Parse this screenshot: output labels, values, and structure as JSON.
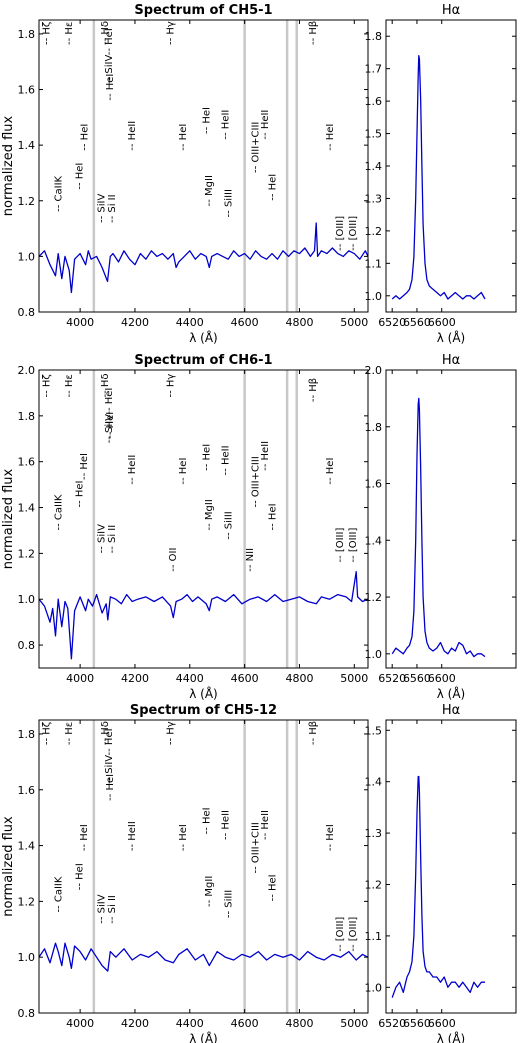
{
  "figure": {
    "ylabel": "normalized flux",
    "xlabel": "λ (Å)"
  },
  "chart_data": [
    {
      "type": "line",
      "title": "Spectrum of CH5-1",
      "xlabel": "λ (Å)",
      "ylabel": "normalized flux",
      "xlim": [
        3850,
        5050
      ],
      "ylim": [
        0.8,
        1.85
      ],
      "xticks": [
        4000,
        4200,
        4400,
        4600,
        4800,
        5000
      ],
      "yticks": [
        0.8,
        1.0,
        1.2,
        1.4,
        1.6,
        1.8
      ],
      "grey_bands": [
        4050,
        4600,
        4755,
        4790
      ],
      "color": "#0000cc",
      "x": [
        3850,
        3870,
        3890,
        3910,
        3920,
        3933,
        3945,
        3960,
        3968,
        3980,
        4000,
        4020,
        4030,
        4040,
        4060,
        4080,
        4100,
        4110,
        4120,
        4140,
        4160,
        4180,
        4200,
        4220,
        4240,
        4260,
        4280,
        4300,
        4320,
        4340,
        4350,
        4360,
        4380,
        4400,
        4420,
        4440,
        4460,
        4471,
        4480,
        4500,
        4520,
        4540,
        4560,
        4580,
        4600,
        4620,
        4640,
        4660,
        4680,
        4700,
        4720,
        4740,
        4760,
        4780,
        4800,
        4820,
        4840,
        4855,
        4861,
        4866,
        4880,
        4900,
        4920,
        4940,
        4960,
        4980,
        5000,
        5020,
        5040,
        5050
      ],
      "y": [
        1.0,
        1.02,
        0.97,
        0.93,
        1.01,
        0.92,
        1.0,
        0.95,
        0.87,
        0.99,
        1.01,
        0.97,
        1.02,
        0.99,
        1.0,
        0.96,
        0.91,
        1.0,
        1.01,
        0.98,
        1.02,
        0.99,
        0.97,
        1.01,
        0.99,
        1.02,
        1.0,
        1.01,
        0.99,
        1.01,
        0.96,
        0.98,
        1.0,
        1.02,
        0.99,
        1.01,
        1.0,
        0.96,
        1.0,
        1.01,
        1.0,
        0.99,
        1.02,
        1.0,
        1.01,
        0.99,
        1.02,
        1.0,
        0.99,
        1.01,
        0.99,
        1.02,
        1.0,
        1.02,
        1.01,
        1.03,
        1.0,
        1.02,
        1.12,
        1.0,
        1.02,
        1.01,
        1.03,
        1.01,
        1.0,
        1.02,
        1.01,
        0.99,
        1.02,
        1.0
      ],
      "line_labels": [
        {
          "text": "-- Hζ",
          "x": 3889,
          "y": 1.76
        },
        {
          "text": "-- Hε",
          "x": 3970,
          "y": 1.76
        },
        {
          "text": "-- Hδ",
          "x": 4101,
          "y": 1.76
        },
        {
          "text": "-- Hγ",
          "x": 4340,
          "y": 1.76
        },
        {
          "text": "-- Hβ",
          "x": 4861,
          "y": 1.76
        },
        {
          "text": "-- HeI",
          "x": 4120,
          "y": 1.56
        },
        {
          "text": "-- HeI",
          "x": 4026,
          "y": 1.38
        },
        {
          "text": "-- HeI",
          "x": 4009,
          "y": 1.24
        },
        {
          "text": "-- CaIIK",
          "x": 3933,
          "y": 1.16
        },
        {
          "text": "-- SiIV",
          "x": 4089,
          "y": 1.12
        },
        {
          "text": "-- Si II",
          "x": 4128,
          "y": 1.12
        },
        {
          "text": "-- SiIV-- HeI",
          "x": 4116,
          "y": 1.62
        },
        {
          "text": "-- HeII",
          "x": 4200,
          "y": 1.38
        },
        {
          "text": "-- HeI",
          "x": 4387,
          "y": 1.38
        },
        {
          "text": "-- HeI",
          "x": 4471,
          "y": 1.44
        },
        {
          "text": "-- HeII",
          "x": 4542,
          "y": 1.42
        },
        {
          "text": "-- MgII",
          "x": 4481,
          "y": 1.18
        },
        {
          "text": "-- SiIII",
          "x": 4553,
          "y": 1.14
        },
        {
          "text": "-- OIII+CIII",
          "x": 4650,
          "y": 1.3
        },
        {
          "text": "-- HeII",
          "x": 4686,
          "y": 1.42
        },
        {
          "text": "-- HeI",
          "x": 4713,
          "y": 1.2
        },
        {
          "text": "-- HeI",
          "x": 4922,
          "y": 1.38
        },
        {
          "text": "-- [OIII]",
          "x": 4959,
          "y": 1.02
        },
        {
          "text": "-- [OIII]",
          "x": 5007,
          "y": 1.02
        }
      ]
    },
    {
      "type": "line",
      "title": "Hα",
      "xlabel": "λ (Å)",
      "xlim": [
        6510,
        6720
      ],
      "ylim": [
        0.95,
        1.85
      ],
      "xticks": [
        6520,
        6560,
        6600
      ],
      "yticks": [
        1.0,
        1.1,
        1.2,
        1.3,
        1.4,
        1.5,
        1.6,
        1.7,
        1.8
      ],
      "color": "#0000cc",
      "x": [
        6520,
        6526,
        6532,
        6538,
        6544,
        6548,
        6552,
        6555,
        6558,
        6560,
        6562,
        6563,
        6564,
        6566,
        6568,
        6570,
        6573,
        6576,
        6580,
        6586,
        6592,
        6598,
        6604,
        6610,
        6616,
        6622,
        6628,
        6634,
        6640,
        6646,
        6652,
        6658,
        6664,
        6670
      ],
      "y": [
        0.99,
        1.0,
        0.99,
        1.0,
        1.01,
        1.02,
        1.05,
        1.12,
        1.3,
        1.5,
        1.68,
        1.74,
        1.73,
        1.6,
        1.4,
        1.22,
        1.1,
        1.05,
        1.03,
        1.02,
        1.01,
        1.0,
        1.01,
        0.99,
        1.0,
        1.01,
        1.0,
        0.99,
        1.0,
        1.0,
        0.99,
        1.0,
        1.01,
        0.99
      ]
    },
    {
      "type": "line",
      "title": "Spectrum of CH6-1",
      "xlabel": "λ (Å)",
      "ylabel": "normalized flux",
      "xlim": [
        3850,
        5050
      ],
      "ylim": [
        0.7,
        2.0
      ],
      "xticks": [
        4000,
        4200,
        4400,
        4600,
        4800,
        5000
      ],
      "yticks": [
        0.8,
        1.0,
        1.2,
        1.4,
        1.6,
        1.8,
        2.0
      ],
      "grey_bands": [
        4050,
        4600,
        4755,
        4790
      ],
      "color": "#0000cc",
      "x": [
        3850,
        3870,
        3890,
        3900,
        3910,
        3920,
        3933,
        3945,
        3955,
        3968,
        3980,
        4000,
        4020,
        4030,
        4045,
        4060,
        4080,
        4095,
        4101,
        4110,
        4130,
        4150,
        4170,
        4190,
        4210,
        4240,
        4270,
        4300,
        4330,
        4340,
        4350,
        4370,
        4390,
        4410,
        4430,
        4460,
        4471,
        4480,
        4500,
        4530,
        4560,
        4590,
        4620,
        4650,
        4680,
        4710,
        4740,
        4770,
        4800,
        4830,
        4861,
        4880,
        4910,
        4940,
        4970,
        4990,
        5007,
        5012,
        5030,
        5050
      ],
      "y": [
        1.0,
        0.97,
        0.9,
        0.96,
        0.84,
        1.0,
        0.88,
        0.99,
        0.96,
        0.74,
        0.95,
        1.01,
        0.95,
        1.0,
        0.97,
        1.02,
        0.94,
        0.98,
        0.91,
        1.01,
        1.0,
        0.98,
        1.02,
        0.99,
        1.0,
        1.01,
        0.99,
        1.01,
        0.97,
        0.92,
        0.99,
        1.0,
        1.02,
        0.99,
        1.01,
        0.98,
        0.95,
        1.0,
        1.01,
        0.99,
        1.02,
        0.98,
        1.0,
        1.01,
        0.99,
        1.02,
        0.99,
        1.0,
        1.01,
        0.99,
        0.98,
        1.01,
        1.0,
        1.02,
        1.01,
        0.99,
        1.12,
        1.01,
        0.99,
        1.0
      ],
      "line_labels": [
        {
          "text": "-- Hζ",
          "x": 3889,
          "y": 1.88
        },
        {
          "text": "-- Hε",
          "x": 3970,
          "y": 1.88
        },
        {
          "text": "-- Hδ",
          "x": 4101,
          "y": 1.88
        },
        {
          "text": "-- Hγ",
          "x": 4340,
          "y": 1.88
        },
        {
          "text": "-- Hβ",
          "x": 4861,
          "y": 1.86
        },
        {
          "text": "-- HeI",
          "x": 4120,
          "y": 1.7
        },
        {
          "text": "-- HeI",
          "x": 4026,
          "y": 1.52
        },
        {
          "text": "-- HeI",
          "x": 4009,
          "y": 1.4
        },
        {
          "text": "-- CaIIK",
          "x": 3933,
          "y": 1.3
        },
        {
          "text": "-- SiIV",
          "x": 4089,
          "y": 1.2
        },
        {
          "text": "-- Si II",
          "x": 4128,
          "y": 1.2
        },
        {
          "text": "-- SiIV-- HeI",
          "x": 4116,
          "y": 1.68
        },
        {
          "text": "-- HeII",
          "x": 4200,
          "y": 1.5
        },
        {
          "text": "-- OII",
          "x": 4350,
          "y": 1.12
        },
        {
          "text": "-- HeI",
          "x": 4387,
          "y": 1.5
        },
        {
          "text": "-- HeI",
          "x": 4471,
          "y": 1.56
        },
        {
          "text": "-- HeII",
          "x": 4542,
          "y": 1.54
        },
        {
          "text": "-- MgII",
          "x": 4481,
          "y": 1.3
        },
        {
          "text": "-- SiIII",
          "x": 4553,
          "y": 1.26
        },
        {
          "text": "-- NII",
          "x": 4630,
          "y": 1.12
        },
        {
          "text": "-- OIII+CIII",
          "x": 4650,
          "y": 1.4
        },
        {
          "text": "-- HeII",
          "x": 4686,
          "y": 1.56
        },
        {
          "text": "-- HeI",
          "x": 4713,
          "y": 1.3
        },
        {
          "text": "-- HeI",
          "x": 4922,
          "y": 1.5
        },
        {
          "text": "-- [OIII]",
          "x": 4959,
          "y": 1.16
        },
        {
          "text": "-- [OIII]",
          "x": 5007,
          "y": 1.16
        }
      ]
    },
    {
      "type": "line",
      "title": "Hα",
      "xlabel": "λ (Å)",
      "xlim": [
        6510,
        6720
      ],
      "ylim": [
        0.95,
        2.0
      ],
      "xticks": [
        6520,
        6560,
        6600
      ],
      "yticks": [
        1.0,
        1.2,
        1.4,
        1.6,
        1.8,
        2.0
      ],
      "color": "#0000cc",
      "x": [
        6520,
        6526,
        6532,
        6538,
        6544,
        6548,
        6552,
        6555,
        6558,
        6560,
        6562,
        6563,
        6564,
        6566,
        6568,
        6570,
        6573,
        6576,
        6580,
        6586,
        6592,
        6598,
        6604,
        6610,
        6616,
        6622,
        6628,
        6634,
        6640,
        6646,
        6652,
        6658,
        6664,
        6670
      ],
      "y": [
        1.0,
        1.02,
        1.01,
        1.0,
        1.02,
        1.03,
        1.06,
        1.15,
        1.4,
        1.7,
        1.88,
        1.9,
        1.86,
        1.65,
        1.4,
        1.2,
        1.08,
        1.04,
        1.02,
        1.01,
        1.02,
        1.04,
        1.01,
        1.0,
        1.02,
        1.01,
        1.04,
        1.03,
        1.0,
        1.01,
        0.99,
        1.0,
        1.0,
        0.99
      ]
    },
    {
      "type": "line",
      "title": "Spectrum of CH5-12",
      "xlabel": "λ (Å)",
      "ylabel": "normalized flux",
      "xlim": [
        3850,
        5050
      ],
      "ylim": [
        0.8,
        1.85
      ],
      "xticks": [
        4000,
        4200,
        4400,
        4600,
        4800,
        5000
      ],
      "yticks": [
        0.8,
        1.0,
        1.2,
        1.4,
        1.6,
        1.8
      ],
      "grey_bands": [
        4050,
        4600,
        4755,
        4790
      ],
      "color": "#0000cc",
      "x": [
        3850,
        3870,
        3890,
        3910,
        3920,
        3933,
        3945,
        3960,
        3968,
        3980,
        4000,
        4020,
        4040,
        4060,
        4080,
        4101,
        4110,
        4130,
        4160,
        4190,
        4220,
        4250,
        4280,
        4310,
        4340,
        4360,
        4390,
        4420,
        4450,
        4471,
        4500,
        4530,
        4560,
        4590,
        4620,
        4650,
        4680,
        4710,
        4740,
        4770,
        4800,
        4830,
        4861,
        4890,
        4920,
        4950,
        4980,
        5007,
        5030,
        5050
      ],
      "y": [
        1.0,
        1.03,
        0.98,
        1.05,
        1.02,
        0.97,
        1.05,
        1.0,
        0.96,
        1.04,
        1.02,
        0.99,
        1.03,
        1.0,
        0.97,
        0.95,
        1.02,
        1.0,
        1.03,
        0.99,
        1.01,
        1.0,
        1.02,
        0.99,
        0.98,
        1.01,
        1.03,
        0.99,
        1.01,
        0.97,
        1.02,
        1.0,
        0.99,
        1.01,
        1.0,
        1.02,
        0.99,
        1.01,
        1.0,
        1.01,
        0.99,
        1.02,
        1.0,
        0.99,
        1.01,
        1.0,
        1.02,
        0.99,
        1.01,
        1.0
      ],
      "line_labels": [
        {
          "text": "-- Hζ",
          "x": 3889,
          "y": 1.76
        },
        {
          "text": "-- Hε",
          "x": 3970,
          "y": 1.76
        },
        {
          "text": "-- Hδ",
          "x": 4101,
          "y": 1.76
        },
        {
          "text": "-- Hγ",
          "x": 4340,
          "y": 1.76
        },
        {
          "text": "-- Hβ",
          "x": 4861,
          "y": 1.76
        },
        {
          "text": "-- HeI",
          "x": 4120,
          "y": 1.56
        },
        {
          "text": "-- HeI",
          "x": 4026,
          "y": 1.38
        },
        {
          "text": "-- HeI",
          "x": 4009,
          "y": 1.24
        },
        {
          "text": "-- CaIIK",
          "x": 3933,
          "y": 1.16
        },
        {
          "text": "-- SiIV",
          "x": 4089,
          "y": 1.12
        },
        {
          "text": "-- Si II",
          "x": 4128,
          "y": 1.12
        },
        {
          "text": "-- SiIV-- HeI",
          "x": 4116,
          "y": 1.62
        },
        {
          "text": "-- HeII",
          "x": 4200,
          "y": 1.38
        },
        {
          "text": "-- HeI",
          "x": 4387,
          "y": 1.38
        },
        {
          "text": "-- HeI",
          "x": 4471,
          "y": 1.44
        },
        {
          "text": "-- HeII",
          "x": 4542,
          "y": 1.42
        },
        {
          "text": "-- MgII",
          "x": 4481,
          "y": 1.18
        },
        {
          "text": "-- SiIII",
          "x": 4553,
          "y": 1.14
        },
        {
          "text": "-- OIII+CIII",
          "x": 4650,
          "y": 1.3
        },
        {
          "text": "-- HeII",
          "x": 4686,
          "y": 1.42
        },
        {
          "text": "-- HeI",
          "x": 4713,
          "y": 1.2
        },
        {
          "text": "-- HeI",
          "x": 4922,
          "y": 1.38
        },
        {
          "text": "-- [OIII]",
          "x": 4959,
          "y": 1.02
        },
        {
          "text": "-- [OIII]",
          "x": 5007,
          "y": 1.02
        }
      ]
    },
    {
      "type": "line",
      "title": "Hα",
      "xlabel": "λ (Å)",
      "xlim": [
        6510,
        6720
      ],
      "ylim": [
        0.95,
        1.52
      ],
      "xticks": [
        6520,
        6560,
        6600
      ],
      "yticks": [
        1.0,
        1.1,
        1.2,
        1.3,
        1.4,
        1.5
      ],
      "color": "#0000cc",
      "x": [
        6520,
        6526,
        6532,
        6538,
        6544,
        6548,
        6552,
        6555,
        6558,
        6560,
        6562,
        6563,
        6564,
        6566,
        6568,
        6570,
        6573,
        6576,
        6580,
        6586,
        6592,
        6598,
        6604,
        6610,
        6616,
        6622,
        6628,
        6634,
        6640,
        6646,
        6652,
        6658,
        6664,
        6670
      ],
      "y": [
        0.98,
        1.0,
        1.01,
        0.99,
        1.02,
        1.03,
        1.05,
        1.1,
        1.22,
        1.34,
        1.41,
        1.41,
        1.38,
        1.25,
        1.14,
        1.07,
        1.04,
        1.03,
        1.03,
        1.02,
        1.02,
        1.01,
        1.02,
        1.0,
        1.01,
        1.01,
        1.0,
        1.01,
        1.0,
        0.99,
        1.01,
        1.0,
        1.01,
        1.01
      ]
    }
  ]
}
